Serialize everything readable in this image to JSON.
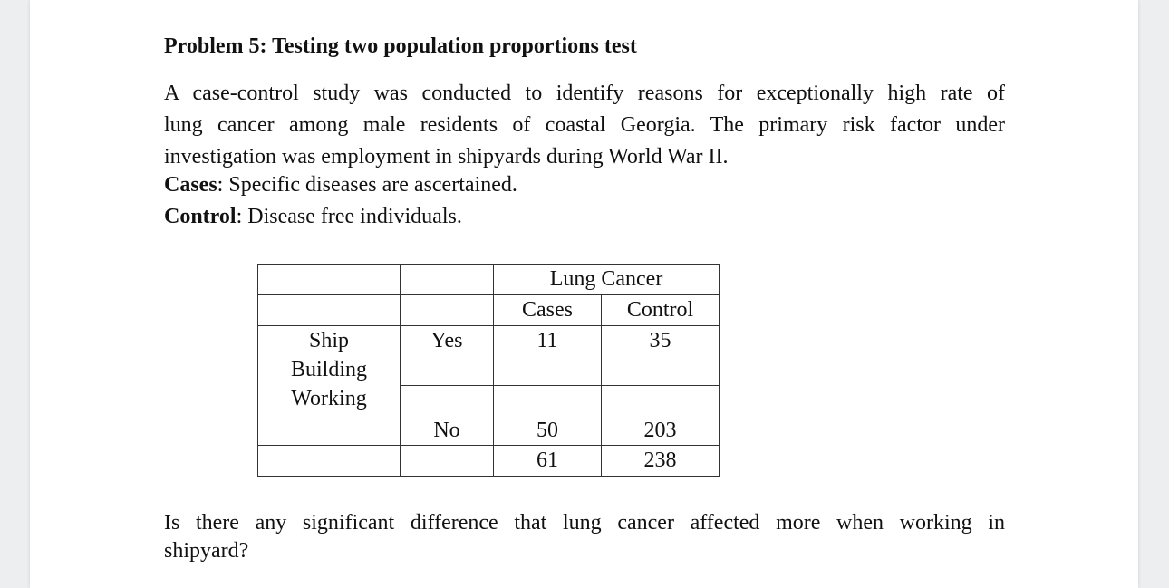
{
  "problem": {
    "title": "Problem 5: Testing two population proportions test",
    "paragraph_lines": [
      "A case-control study was conducted to identify reasons for exceptionally high rate of",
      "lung cancer among male residents of coastal Georgia. The primary risk factor under",
      "investigation was employment in shipyards during World War II."
    ],
    "cases_label": "Cases",
    "cases_text": ": Specific diseases are ascertained.",
    "control_label": "Control",
    "control_text": ": Disease free individuals.",
    "question_lines": [
      "Is there any significant difference that lung cancer affected more when working in",
      "shipyard?"
    ]
  },
  "table": {
    "group_header": "Lung Cancer",
    "col_headers": [
      "Cases",
      "Control"
    ],
    "row_group_label": [
      "Ship",
      "Building",
      "Working"
    ],
    "rows": [
      {
        "label": "Yes",
        "cases": "11",
        "control": "35"
      },
      {
        "label": "No",
        "cases": "50",
        "control": "203"
      }
    ],
    "totals": {
      "cases": "61",
      "control": "238"
    }
  }
}
